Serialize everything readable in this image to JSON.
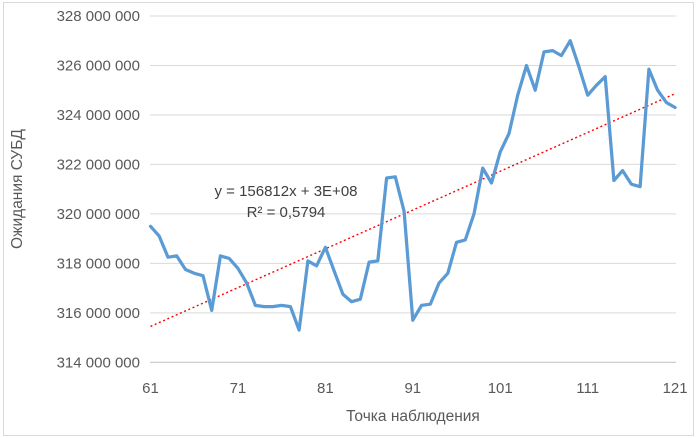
{
  "chart_data": {
    "type": "line",
    "title": "",
    "xlabel": "Точка наблюдения",
    "ylabel": "Ожидания СУБД",
    "xlim": [
      61,
      121
    ],
    "ylim": [
      314000000,
      328000000
    ],
    "grid": "horizontal",
    "legend": "none",
    "x_start": 61,
    "x_step": 1,
    "x_ticks": [
      "61",
      "71",
      "81",
      "91",
      "101",
      "111",
      "121"
    ],
    "y_ticks": [
      "328 000 000",
      "326 000 000",
      "324 000 000",
      "322 000 000",
      "320 000 000",
      "318 000 000",
      "316 000 000",
      "314 000 000"
    ],
    "series": [
      {
        "name": "Ожидания СУБД",
        "color": "#5B9BD5",
        "values": [
          319500000,
          319100000,
          318250000,
          318300000,
          317750000,
          317600000,
          317500000,
          316100000,
          318300000,
          318200000,
          317800000,
          317200000,
          316300000,
          316250000,
          316250000,
          316300000,
          316250000,
          315300000,
          318100000,
          317900000,
          318650000,
          317700000,
          316750000,
          316450000,
          316550000,
          318050000,
          318100000,
          321450000,
          321500000,
          320100000,
          315700000,
          316300000,
          316350000,
          317200000,
          317600000,
          318850000,
          318950000,
          320000000,
          321850000,
          321250000,
          322500000,
          323250000,
          324800000,
          326000000,
          325000000,
          326550000,
          326600000,
          326400000,
          327000000,
          325950000,
          324800000,
          325200000,
          325550000,
          321350000,
          321750000,
          321200000,
          321100000,
          325850000,
          325000000,
          324500000,
          324300000
        ]
      }
    ],
    "trendline": {
      "equation": "y = 156812x + 3E+08",
      "r_squared": "R² = 0,5794",
      "color": "#FF0000",
      "value_at_x_start": 315450000,
      "value_at_x_end": 324860000
    },
    "colors": {
      "gridline": "#D9D9D9",
      "axis_line": "#BFBFBF",
      "tick_text": "#595959",
      "annotation_text": "#404040",
      "frame_border": "#D9D9D9"
    }
  }
}
